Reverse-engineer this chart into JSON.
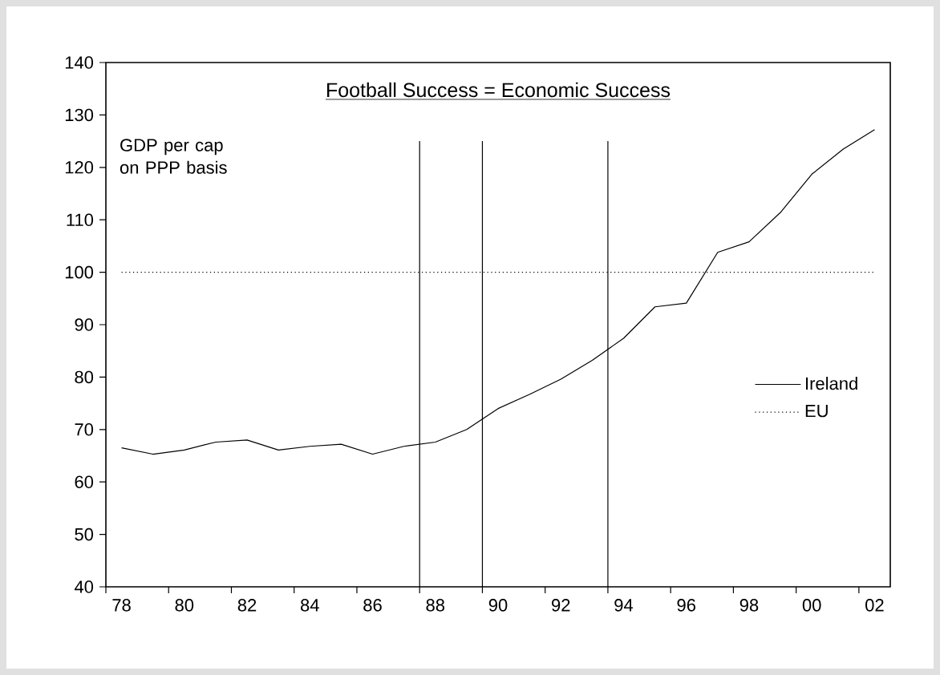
{
  "chart_data": {
    "type": "line",
    "title": "Football Success  = Economic Success",
    "annotations": [
      "GDP per cap on PPP basis"
    ],
    "x": [
      1978,
      1979,
      1980,
      1981,
      1982,
      1983,
      1984,
      1985,
      1986,
      1987,
      1988,
      1989,
      1990,
      1991,
      1992,
      1993,
      1994,
      1995,
      1996,
      1997,
      1998,
      1999,
      2000,
      2001,
      2002
    ],
    "series": [
      {
        "name": "Ireland",
        "color": "#000000",
        "line_style": "solid",
        "values": [
          66.5,
          65.3,
          66.1,
          67.6,
          68.0,
          66.1,
          66.8,
          67.2,
          65.3,
          66.8,
          67.6,
          70.0,
          74.0,
          76.7,
          79.6,
          83.2,
          87.4,
          93.4,
          94.1,
          103.8,
          105.8,
          111.4,
          118.7,
          123.5,
          127.2
        ]
      },
      {
        "name": "EU",
        "color": "#000000",
        "line_style": "dotted",
        "values": [
          100,
          100,
          100,
          100,
          100,
          100,
          100,
          100,
          100,
          100,
          100,
          100,
          100,
          100,
          100,
          100,
          100,
          100,
          100,
          100,
          100,
          100,
          100,
          100,
          100
        ]
      }
    ],
    "xlim": [
      1977.5,
      2002.5
    ],
    "xticks": [
      {
        "value": 1977.5,
        "label": null
      },
      {
        "value": 1978,
        "label": "78"
      },
      {
        "value": 1979.5,
        "label": null
      },
      {
        "value": 1980,
        "label": "80"
      },
      {
        "value": 1981.5,
        "label": null
      },
      {
        "value": 1982,
        "label": "82"
      },
      {
        "value": 1983.5,
        "label": null
      },
      {
        "value": 1984,
        "label": "84"
      },
      {
        "value": 1985.5,
        "label": null
      },
      {
        "value": 1986,
        "label": "86"
      },
      {
        "value": 1987.5,
        "label": null
      },
      {
        "value": 1988,
        "label": "88"
      },
      {
        "value": 1989.5,
        "label": null
      },
      {
        "value": 1990,
        "label": "90"
      },
      {
        "value": 1991.5,
        "label": null
      },
      {
        "value": 1992,
        "label": "92"
      },
      {
        "value": 1993.5,
        "label": null
      },
      {
        "value": 1994,
        "label": "94"
      },
      {
        "value": 1995.5,
        "label": null
      },
      {
        "value": 1996,
        "label": "96"
      },
      {
        "value": 1997.5,
        "label": null
      },
      {
        "value": 1998,
        "label": "98"
      },
      {
        "value": 1999.5,
        "label": null
      },
      {
        "value": 2000,
        "label": "00"
      },
      {
        "value": 2001.5,
        "label": null
      },
      {
        "value": 2002,
        "label": "02"
      }
    ],
    "ylim": [
      40,
      140
    ],
    "yticks": [
      40,
      50,
      60,
      70,
      80,
      90,
      100,
      110,
      120,
      130,
      140
    ],
    "ref_lines": [
      {
        "axis": "x",
        "value": 1987.5,
        "color": "#000000"
      },
      {
        "axis": "x",
        "value": 1989.5,
        "color": "#000000"
      },
      {
        "axis": "x",
        "value": 1993.5,
        "color": "#000000"
      }
    ],
    "legend": "right",
    "grid": false,
    "marker": "none"
  }
}
